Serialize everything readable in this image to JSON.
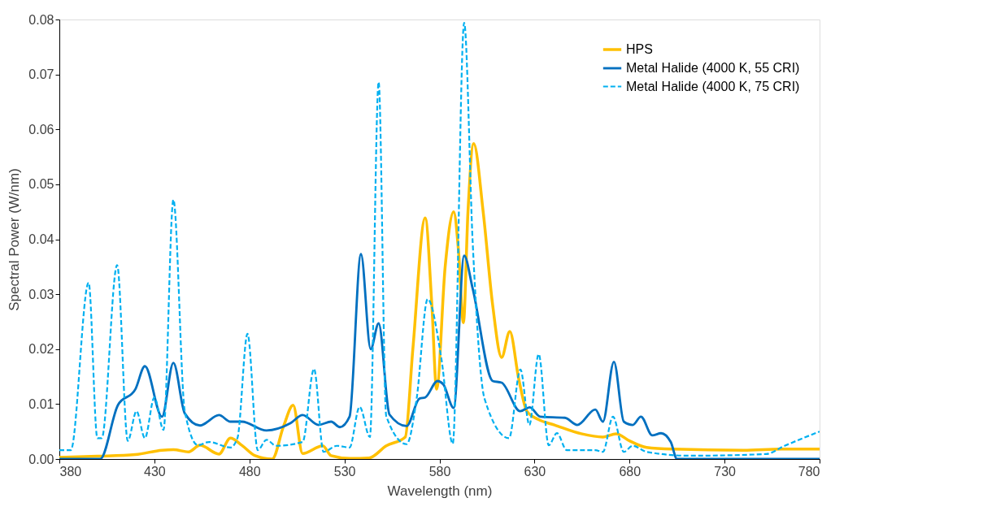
{
  "chart_data": {
    "type": "line",
    "xlabel": "Wavelength (nm)",
    "ylabel": "Spectral Power (W/nm)",
    "xlim": [
      380,
      780
    ],
    "xticks": [
      380,
      430,
      480,
      530,
      580,
      630,
      680,
      730,
      780
    ],
    "ylim": [
      0,
      0.08
    ],
    "yticks": [
      {
        "value": 0,
        "label": "0.00"
      },
      {
        "value": 0.01,
        "label": "0.01"
      },
      {
        "value": 0.02,
        "label": "0.02"
      },
      {
        "value": 0.03,
        "label": "0.03"
      },
      {
        "value": 0.04,
        "label": "0.04"
      },
      {
        "value": 0.05,
        "label": "0.05"
      },
      {
        "value": 0.06,
        "label": "0.06"
      },
      {
        "value": 0.07,
        "label": "0.07"
      },
      {
        "value": 0.08,
        "label": "0.08"
      }
    ],
    "grid": false,
    "legend": "top right",
    "marker": "none",
    "series": [
      {
        "name": "HPS",
        "color": "#ffc000",
        "line_style": "solid",
        "x": [
          380,
          400,
          420,
          434,
          440,
          448,
          454,
          464,
          470,
          476,
          483,
          492,
          498,
          503,
          508,
          518.6,
          523,
          533,
          543,
          552,
          562,
          566,
          572.5,
          576,
          578.5,
          583,
          587.5,
          590,
          592.6,
          595,
          598,
          603,
          608,
          612.7,
          617,
          621.7,
          626,
          632,
          640.5,
          654.6,
          666,
          673,
          680,
          689,
          703,
          740,
          760,
          780
        ],
        "values": [
          0.0003,
          0.0005,
          0.0008,
          0.0016,
          0.0017,
          0.0013,
          0.0025,
          0.0009,
          0.0038,
          0.0025,
          0.0006,
          0.0,
          0.006,
          0.0098,
          0.001,
          0.0024,
          0.0006,
          0.0001,
          0.0002,
          0.0024,
          0.004,
          0.02,
          0.0439,
          0.028,
          0.0127,
          0.035,
          0.045,
          0.038,
          0.0248,
          0.045,
          0.0574,
          0.045,
          0.028,
          0.0185,
          0.0232,
          0.0146,
          0.0087,
          0.0072,
          0.0062,
          0.0046,
          0.004,
          0.0046,
          0.0033,
          0.0021,
          0.0018,
          0.0016,
          0.0018,
          0.0018
        ]
      },
      {
        "name": "Metal Halide (4000 K, 55 CRI)",
        "color": "#0070c0",
        "line_style": "solid",
        "x": [
          380,
          401.5,
          410.8,
          420,
          425,
          434,
          440,
          446,
          454,
          464,
          470,
          476,
          489,
          501.5,
          508,
          516.4,
          523,
          527.6,
          532.7,
          538.7,
          543.8,
          548,
          553.7,
          562.7,
          569.5,
          572.5,
          579,
          582,
          587.5,
          593,
          597.5,
          608,
          612.7,
          622.5,
          627.5,
          633,
          646,
          652.5,
          662,
          666,
          671.8,
          677,
          681.7,
          686,
          692,
          696.6,
          701.7,
          705,
          780
        ],
        "values": [
          0.0,
          0.0,
          0.0098,
          0.0127,
          0.0169,
          0.0077,
          0.0175,
          0.0083,
          0.0061,
          0.008,
          0.0068,
          0.0068,
          0.0052,
          0.0065,
          0.008,
          0.0062,
          0.0068,
          0.0058,
          0.0077,
          0.0373,
          0.02,
          0.0247,
          0.0081,
          0.006,
          0.011,
          0.0112,
          0.0142,
          0.0136,
          0.0093,
          0.037,
          0.031,
          0.0142,
          0.0139,
          0.0087,
          0.0094,
          0.0077,
          0.0075,
          0.0062,
          0.009,
          0.0068,
          0.0177,
          0.0068,
          0.0062,
          0.0077,
          0.0043,
          0.0047,
          0.0031,
          0.0,
          0.0
        ]
      },
      {
        "name": "Metal Halide (4000 K, 75 CRI)",
        "color": "#00b0f0",
        "line_style": "dashed",
        "x": [
          380,
          386,
          395.4,
          400,
          402.3,
          410.4,
          416,
          420.6,
          425,
          430,
          434.8,
          440,
          446,
          453,
          458.7,
          470,
          473.7,
          479,
          484.4,
          489,
          494,
          508,
          514,
          519,
          526,
          532.7,
          538,
          543.4,
          548,
          552,
          562.7,
          568,
          573.8,
          581,
          587,
          593,
          597.5,
          603.7,
          616.6,
          622.6,
          627.3,
          632.2,
          637.5,
          641.8,
          647,
          662,
          666,
          671.3,
          677,
          681.7,
          689,
          711.5,
          751.8,
          761.6,
          780
        ],
        "values": [
          0.0016,
          0.0016,
          0.0321,
          0.0038,
          0.0038,
          0.0353,
          0.0033,
          0.0087,
          0.0038,
          0.0112,
          0.0053,
          0.0472,
          0.0087,
          0.0025,
          0.0031,
          0.0021,
          0.0038,
          0.0228,
          0.0016,
          0.0035,
          0.0024,
          0.0031,
          0.0164,
          0.0013,
          0.0024,
          0.0021,
          0.0095,
          0.004,
          0.0686,
          0.0078,
          0.0027,
          0.011,
          0.0291,
          0.0183,
          0.0028,
          0.0794,
          0.0393,
          0.011,
          0.0038,
          0.0163,
          0.0062,
          0.0191,
          0.0025,
          0.0047,
          0.0016,
          0.0016,
          0.0013,
          0.0077,
          0.0013,
          0.0024,
          0.0013,
          0.0006,
          0.0009,
          0.0024,
          0.005
        ]
      }
    ]
  }
}
